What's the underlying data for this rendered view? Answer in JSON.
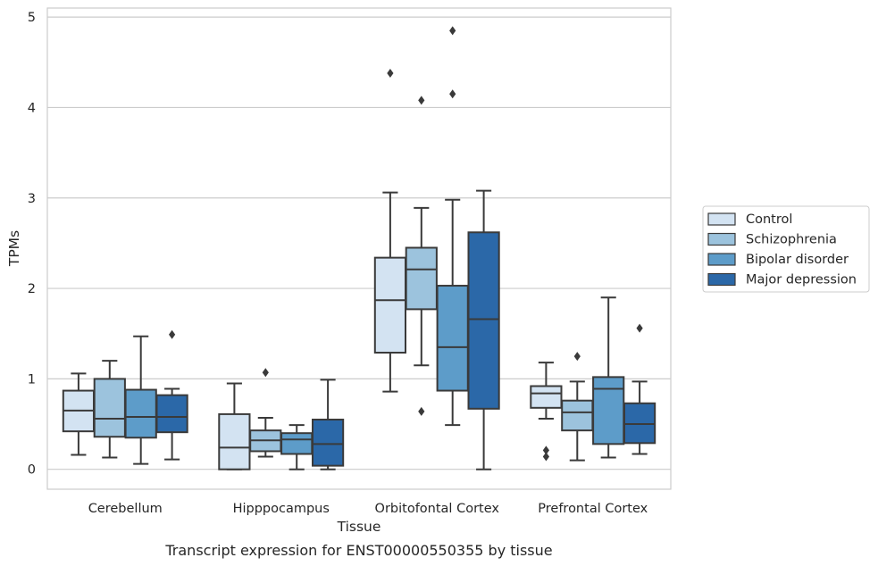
{
  "chart_data": {
    "type": "boxplot",
    "caption": "Transcript expression for ENST00000550355 by tissue",
    "xlabel": "Tissue",
    "ylabel": "TPMs",
    "ylim": [
      -0.22,
      5.1
    ],
    "yticks": [
      0,
      1,
      2,
      3,
      4,
      5
    ],
    "grid": "horizontal",
    "legend_position": "right",
    "categories": [
      "Cerebellum",
      "Hipppocampus",
      "Orbitofontal Cortex",
      "Prefrontal Cortex"
    ],
    "series": [
      {
        "name": "Control",
        "color": "#d3e3f2",
        "boxes": [
          {
            "whisker_low": 0.16,
            "q1": 0.42,
            "median": 0.65,
            "q3": 0.87,
            "whisker_high": 1.06,
            "outliers": []
          },
          {
            "whisker_low": 0.0,
            "q1": 0.0,
            "median": 0.24,
            "q3": 0.61,
            "whisker_high": 0.95,
            "outliers": []
          },
          {
            "whisker_low": 0.86,
            "q1": 1.29,
            "median": 1.87,
            "q3": 2.34,
            "whisker_high": 3.06,
            "outliers": [
              4.38
            ]
          },
          {
            "whisker_low": 0.56,
            "q1": 0.68,
            "median": 0.84,
            "q3": 0.92,
            "whisker_high": 1.18,
            "outliers": [
              0.21,
              0.14
            ]
          }
        ]
      },
      {
        "name": "Schizophrenia",
        "color": "#9cc3dd",
        "boxes": [
          {
            "whisker_low": 0.13,
            "q1": 0.36,
            "median": 0.56,
            "q3": 1.0,
            "whisker_high": 1.2,
            "outliers": []
          },
          {
            "whisker_low": 0.14,
            "q1": 0.2,
            "median": 0.32,
            "q3": 0.43,
            "whisker_high": 0.57,
            "outliers": [
              1.07
            ]
          },
          {
            "whisker_low": 1.15,
            "q1": 1.77,
            "median": 2.21,
            "q3": 2.45,
            "whisker_high": 2.89,
            "outliers": [
              4.08,
              0.64
            ]
          },
          {
            "whisker_low": 0.1,
            "q1": 0.43,
            "median": 0.63,
            "q3": 0.76,
            "whisker_high": 0.97,
            "outliers": [
              1.25
            ]
          }
        ]
      },
      {
        "name": "Bipolar disorder",
        "color": "#5d9cc9",
        "boxes": [
          {
            "whisker_low": 0.06,
            "q1": 0.35,
            "median": 0.58,
            "q3": 0.88,
            "whisker_high": 1.47,
            "outliers": []
          },
          {
            "whisker_low": 0.0,
            "q1": 0.17,
            "median": 0.33,
            "q3": 0.4,
            "whisker_high": 0.49,
            "outliers": []
          },
          {
            "whisker_low": 0.49,
            "q1": 0.87,
            "median": 1.35,
            "q3": 2.03,
            "whisker_high": 2.98,
            "outliers": [
              4.85,
              4.15
            ]
          },
          {
            "whisker_low": 0.13,
            "q1": 0.28,
            "median": 0.89,
            "q3": 1.02,
            "whisker_high": 1.9,
            "outliers": []
          }
        ]
      },
      {
        "name": "Major depression",
        "color": "#2b68a8",
        "boxes": [
          {
            "whisker_low": 0.11,
            "q1": 0.41,
            "median": 0.58,
            "q3": 0.82,
            "whisker_high": 0.89,
            "outliers": [
              1.49
            ]
          },
          {
            "whisker_low": 0.0,
            "q1": 0.04,
            "median": 0.28,
            "q3": 0.55,
            "whisker_high": 0.99,
            "outliers": []
          },
          {
            "whisker_low": 0.0,
            "q1": 0.67,
            "median": 1.66,
            "q3": 2.62,
            "whisker_high": 3.08,
            "outliers": []
          },
          {
            "whisker_low": 0.17,
            "q1": 0.29,
            "median": 0.5,
            "q3": 0.73,
            "whisker_high": 0.97,
            "outliers": [
              1.56
            ]
          }
        ]
      }
    ]
  }
}
